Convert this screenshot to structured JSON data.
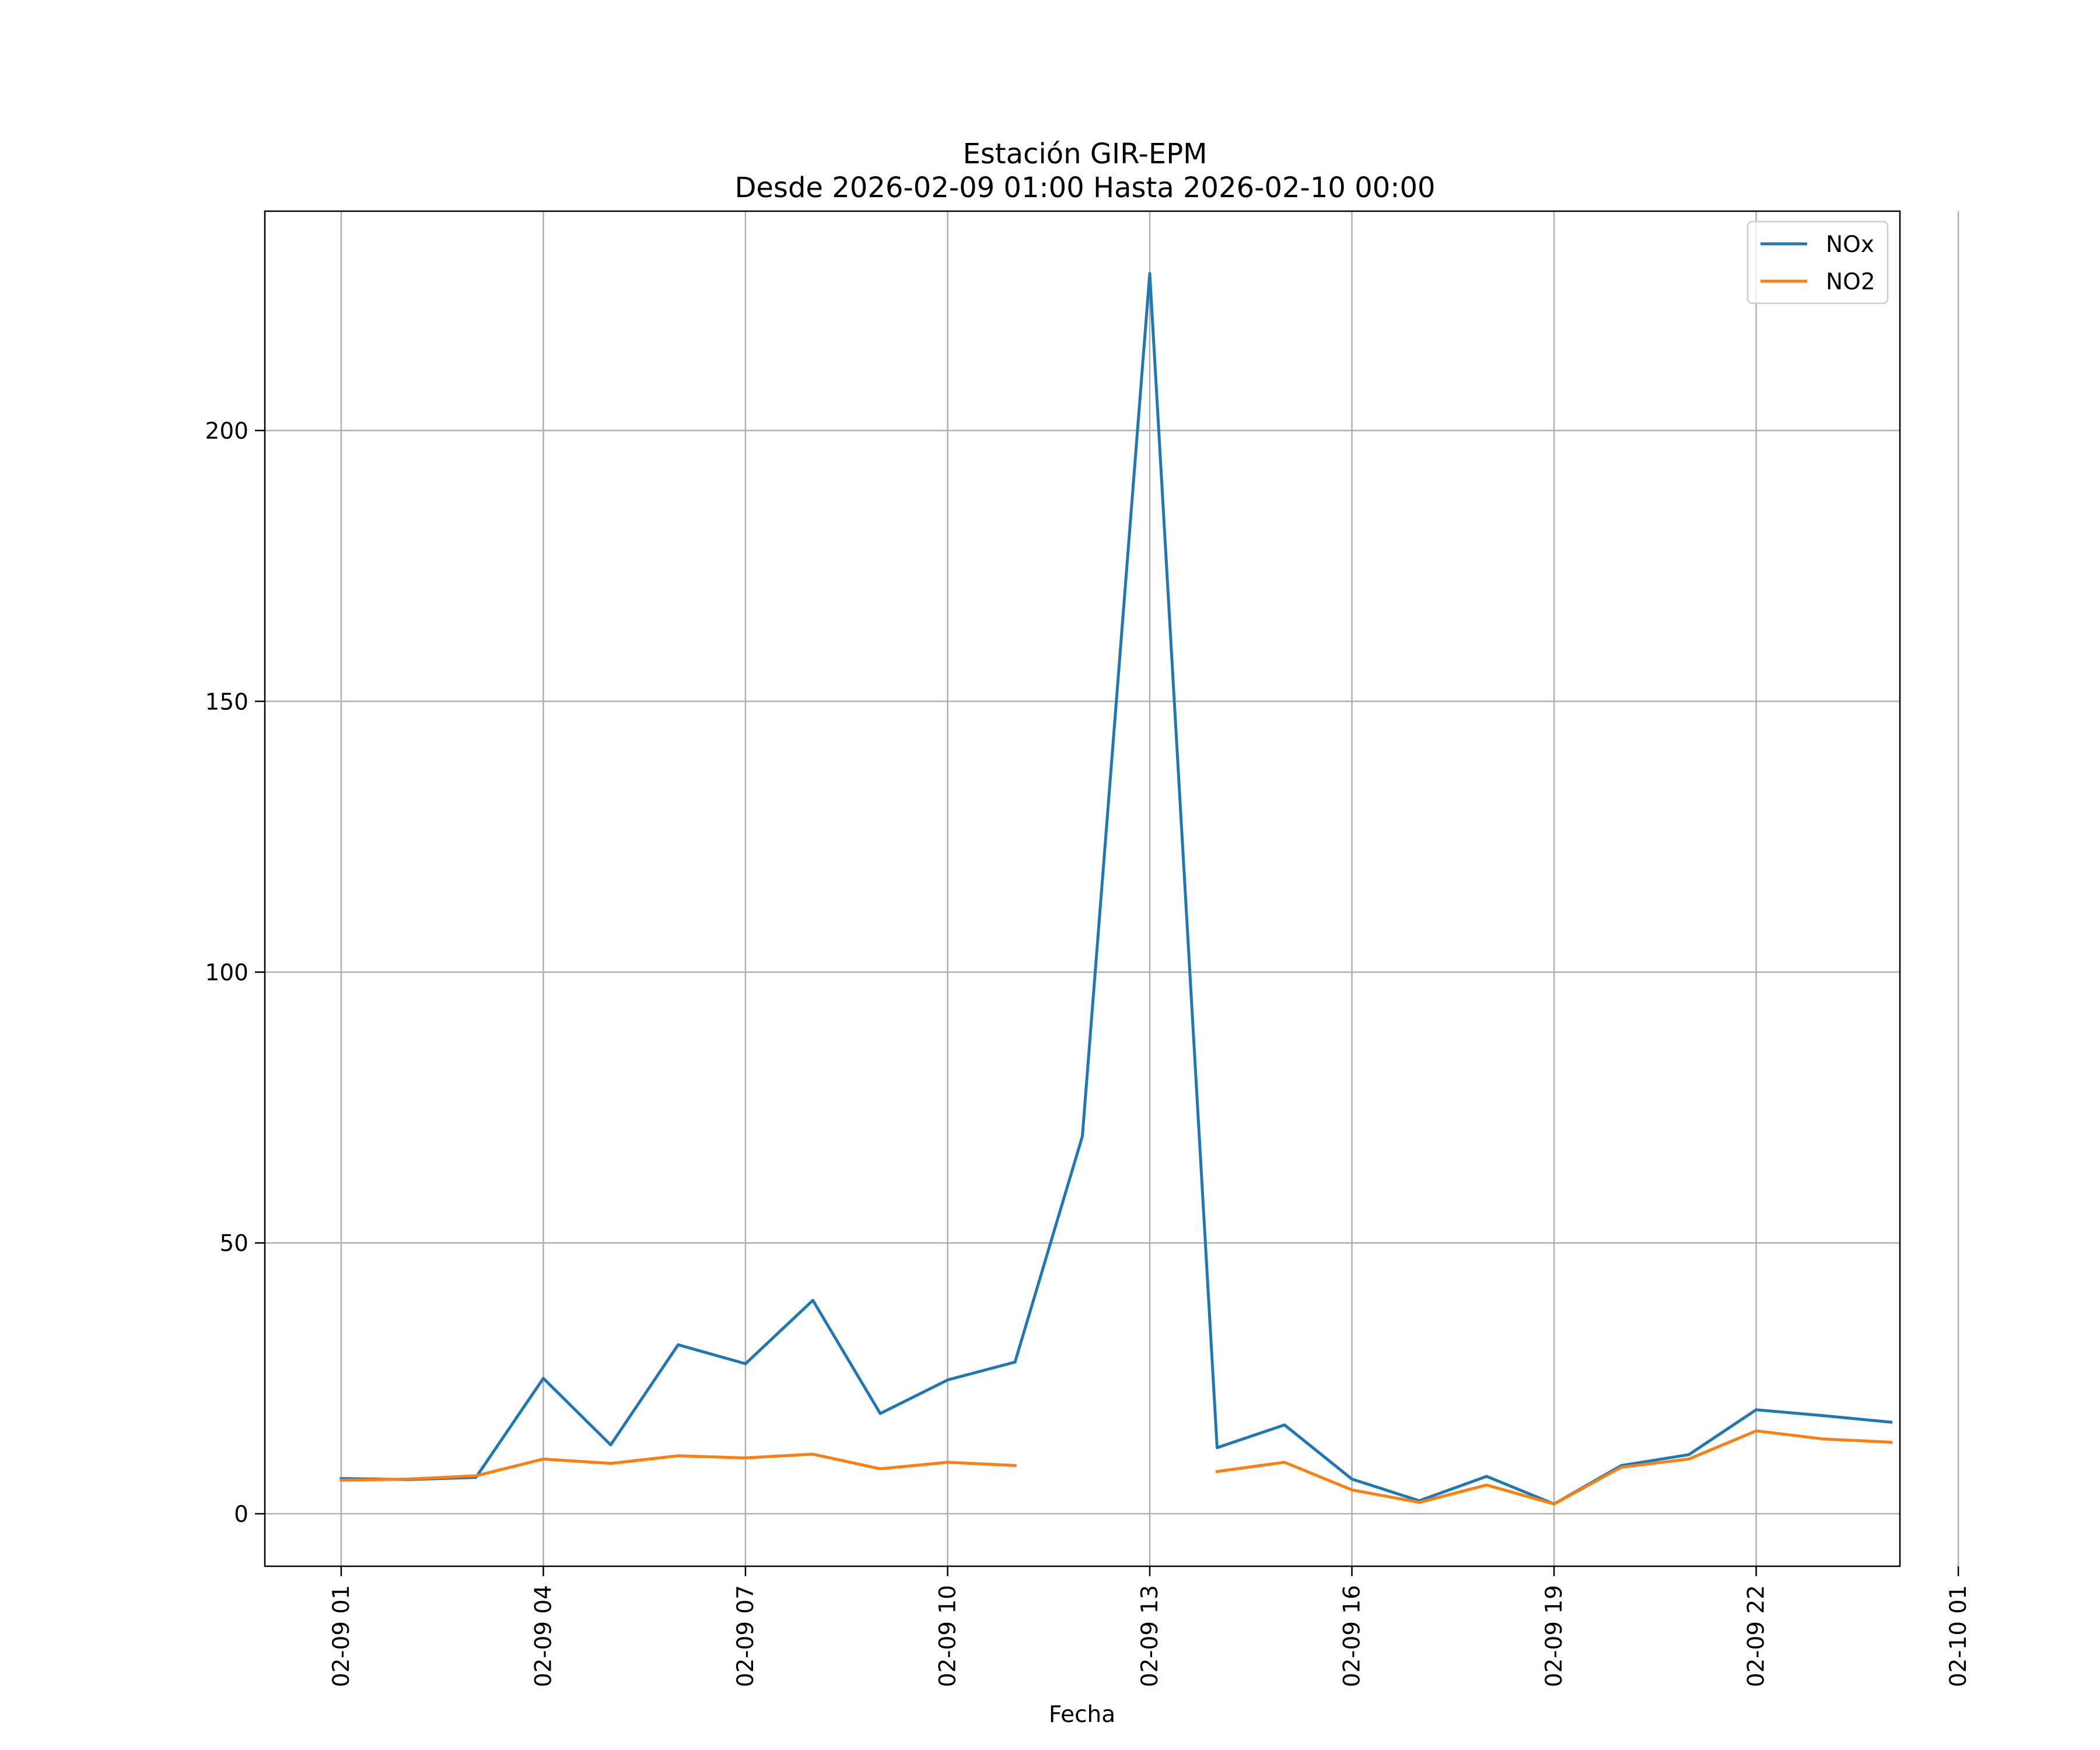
{
  "chart_data": {
    "type": "line",
    "title": "Estación GIR-EPM",
    "subtitle": "Desde 2026-02-09 01:00 Hasta 2026-02-10 00:00",
    "xlabel": "Fecha",
    "ylabel": "",
    "x": [
      "2026-02-09 01:00",
      "2026-02-09 02:00",
      "2026-02-09 03:00",
      "2026-02-09 04:00",
      "2026-02-09 05:00",
      "2026-02-09 06:00",
      "2026-02-09 07:00",
      "2026-02-09 08:00",
      "2026-02-09 09:00",
      "2026-02-09 10:00",
      "2026-02-09 11:00",
      "2026-02-09 12:00",
      "2026-02-09 13:00",
      "2026-02-09 14:00",
      "2026-02-09 15:00",
      "2026-02-09 16:00",
      "2026-02-09 17:00",
      "2026-02-09 18:00",
      "2026-02-09 19:00",
      "2026-02-09 20:00",
      "2026-02-09 21:00",
      "2026-02-09 22:00",
      "2026-02-09 23:00",
      "2026-02-10 00:00"
    ],
    "series": [
      {
        "name": "NOx",
        "color": "#1f77b4",
        "values": [
          6.5,
          6.3,
          6.7,
          25.0,
          12.7,
          31.2,
          27.7,
          39.4,
          18.5,
          24.7,
          28.0,
          69.7,
          229.0,
          12.2,
          16.4,
          6.4,
          2.4,
          6.9,
          1.8,
          8.9,
          10.9,
          19.2,
          18.1,
          16.9
        ]
      },
      {
        "name": "NO2",
        "color": "#ff7f0e",
        "values": [
          6.2,
          6.4,
          7.0,
          10.1,
          9.3,
          10.7,
          10.3,
          11.0,
          8.3,
          9.5,
          8.9,
          null,
          null,
          7.8,
          9.5,
          4.4,
          2.1,
          5.3,
          1.8,
          8.6,
          10.1,
          15.3,
          13.8,
          13.2
        ]
      }
    ],
    "xticks": [
      "02-09 01",
      "02-09 04",
      "02-09 07",
      "02-09 10",
      "02-09 13",
      "02-09 16",
      "02-09 19",
      "02-09 22",
      "02-10 01"
    ],
    "yticks": [
      0,
      50,
      100,
      150,
      200
    ],
    "xlim": [
      "2026-02-08 23:52",
      "2026-02-10 00:08"
    ],
    "ylim": [
      -9.7,
      240.5
    ],
    "grid": true,
    "legend": "top-right"
  }
}
